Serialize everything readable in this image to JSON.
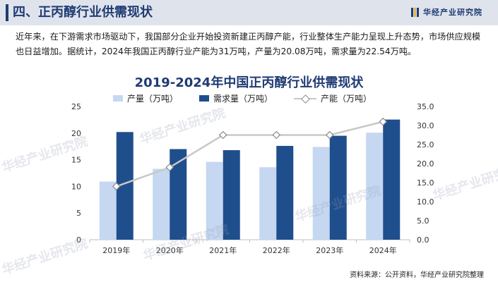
{
  "header": {
    "title": "四、正丙醇行业供需现状",
    "brand": "华经产业研究院"
  },
  "intro": "近年来，在下游需求市场驱动下，我国部分企业开始投资新建正丙醇产能，行业整体生产能力呈现上升态势，市场供应规模也日益增加。据统计，2024年我国正丙醇行业产能为31万吨，产量为20.08万吨，需求量为22.54万吨。",
  "watermark": "华经产业研究院",
  "source": "资料来源：公开资料，华经产业研究院整理",
  "colors": {
    "production": "#c5d7f1",
    "demand": "#1f4e8c",
    "capacity": "#c8c8c8",
    "marker_stroke": "#8a8a8a",
    "title": "#1f3b73"
  },
  "chart_data": {
    "type": "bar",
    "title": "2019-2024年中国正丙醇行业供需现状",
    "categories": [
      "2019年",
      "2020年",
      "2021年",
      "2022年",
      "2023年",
      "2024年"
    ],
    "series": [
      {
        "name": "产量（万吨）",
        "type": "bar",
        "axis": "left",
        "values": [
          10.9,
          13.3,
          14.6,
          13.6,
          17.4,
          20.08
        ]
      },
      {
        "name": "需求量（万吨）",
        "type": "bar",
        "axis": "left",
        "values": [
          20.2,
          17.0,
          16.8,
          17.6,
          19.5,
          22.54
        ]
      },
      {
        "name": "产能（万吨）",
        "type": "line",
        "axis": "right",
        "values": [
          14,
          19,
          27.5,
          27.5,
          27.5,
          31
        ]
      }
    ],
    "y_left": {
      "min": 0,
      "max": 25,
      "ticks": [
        "0",
        "5",
        "10",
        "15",
        "20",
        "25"
      ]
    },
    "y_right": {
      "min": 0,
      "max": 35,
      "ticks": [
        "0.0",
        "5.0",
        "10.0",
        "15.0",
        "20.0",
        "25.0",
        "30.0",
        "35.0"
      ]
    },
    "legend_position": "top",
    "grid": false
  }
}
